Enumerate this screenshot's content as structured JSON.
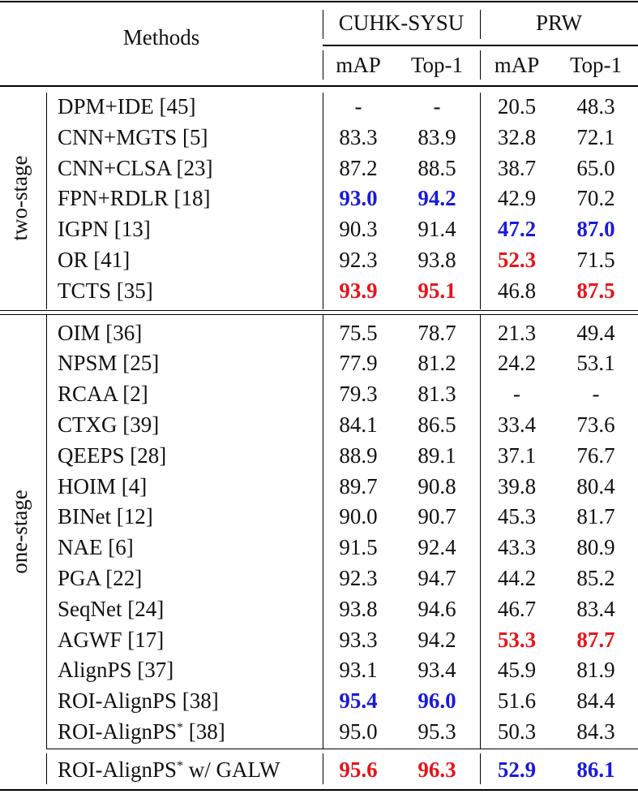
{
  "table": {
    "header": {
      "methods": "Methods",
      "datasets": [
        {
          "name": "CUHK-SYSU",
          "metrics": [
            "mAP",
            "Top-1"
          ]
        },
        {
          "name": "PRW",
          "metrics": [
            "mAP",
            "Top-1"
          ]
        }
      ]
    },
    "colors": {
      "best": "#e8141a",
      "second": "#1a1adc",
      "normal": "#111111"
    },
    "groups": [
      {
        "label": "two-stage",
        "rows": [
          {
            "method": "DPM+IDE [45]",
            "values": [
              "-",
              "-",
              "20.5",
              "48.3"
            ],
            "styles": [
              "n",
              "n",
              "n",
              "n"
            ]
          },
          {
            "method": "CNN+MGTS [5]",
            "values": [
              "83.3",
              "83.9",
              "32.8",
              "72.1"
            ],
            "styles": [
              "n",
              "n",
              "n",
              "n"
            ]
          },
          {
            "method": "CNN+CLSA [23]",
            "values": [
              "87.2",
              "88.5",
              "38.7",
              "65.0"
            ],
            "styles": [
              "n",
              "n",
              "n",
              "n"
            ]
          },
          {
            "method": "FPN+RDLR [18]",
            "values": [
              "93.0",
              "94.2",
              "42.9",
              "70.2"
            ],
            "styles": [
              "second",
              "second",
              "n",
              "n"
            ]
          },
          {
            "method": "IGPN [13]",
            "values": [
              "90.3",
              "91.4",
              "47.2",
              "87.0"
            ],
            "styles": [
              "n",
              "n",
              "second",
              "second"
            ]
          },
          {
            "method": "OR [41]",
            "values": [
              "92.3",
              "93.8",
              "52.3",
              "71.5"
            ],
            "styles": [
              "n",
              "n",
              "best",
              "n"
            ]
          },
          {
            "method": "TCTS [35]",
            "values": [
              "93.9",
              "95.1",
              "46.8",
              "87.5"
            ],
            "styles": [
              "best",
              "best",
              "n",
              "best"
            ]
          }
        ]
      },
      {
        "label": "one-stage",
        "rows": [
          {
            "method": "OIM [36]",
            "values": [
              "75.5",
              "78.7",
              "21.3",
              "49.4"
            ],
            "styles": [
              "n",
              "n",
              "n",
              "n"
            ]
          },
          {
            "method": "NPSM [25]",
            "values": [
              "77.9",
              "81.2",
              "24.2",
              "53.1"
            ],
            "styles": [
              "n",
              "n",
              "n",
              "n"
            ]
          },
          {
            "method": "RCAA [2]",
            "values": [
              "79.3",
              "81.3",
              "-",
              "-"
            ],
            "styles": [
              "n",
              "n",
              "n",
              "n"
            ]
          },
          {
            "method": "CTXG [39]",
            "values": [
              "84.1",
              "86.5",
              "33.4",
              "73.6"
            ],
            "styles": [
              "n",
              "n",
              "n",
              "n"
            ]
          },
          {
            "method": "QEEPS [28]",
            "values": [
              "88.9",
              "89.1",
              "37.1",
              "76.7"
            ],
            "styles": [
              "n",
              "n",
              "n",
              "n"
            ]
          },
          {
            "method": "HOIM [4]",
            "values": [
              "89.7",
              "90.8",
              "39.8",
              "80.4"
            ],
            "styles": [
              "n",
              "n",
              "n",
              "n"
            ]
          },
          {
            "method": "BINet [12]",
            "values": [
              "90.0",
              "90.7",
              "45.3",
              "81.7"
            ],
            "styles": [
              "n",
              "n",
              "n",
              "n"
            ]
          },
          {
            "method": "NAE [6]",
            "values": [
              "91.5",
              "92.4",
              "43.3",
              "80.9"
            ],
            "styles": [
              "n",
              "n",
              "n",
              "n"
            ]
          },
          {
            "method": "PGA [22]",
            "values": [
              "92.3",
              "94.7",
              "44.2",
              "85.2"
            ],
            "styles": [
              "n",
              "n",
              "n",
              "n"
            ]
          },
          {
            "method": "SeqNet [24]",
            "values": [
              "93.8",
              "94.6",
              "46.7",
              "83.4"
            ],
            "styles": [
              "n",
              "n",
              "n",
              "n"
            ]
          },
          {
            "method": "AGWF [17]",
            "values": [
              "93.3",
              "94.2",
              "53.3",
              "87.7"
            ],
            "styles": [
              "n",
              "n",
              "best",
              "best"
            ]
          },
          {
            "method": "AlignPS [37]",
            "values": [
              "93.1",
              "93.4",
              "45.9",
              "81.9"
            ],
            "styles": [
              "n",
              "n",
              "n",
              "n"
            ]
          },
          {
            "method": "ROI-AlignPS [38]",
            "values": [
              "95.4",
              "96.0",
              "51.6",
              "84.4"
            ],
            "styles": [
              "second",
              "second",
              "n",
              "n"
            ]
          },
          {
            "method_base": "ROI-AlignPS",
            "method_sup": "*",
            "method_tail": " [38]",
            "values": [
              "95.0",
              "95.3",
              "50.3",
              "84.3"
            ],
            "styles": [
              "n",
              "n",
              "n",
              "n"
            ]
          }
        ]
      }
    ],
    "final_row": {
      "method_base": "ROI-AlignPS",
      "method_sup": "*",
      "method_tail": " w/ GALW",
      "values": [
        "95.6",
        "96.3",
        "52.9",
        "86.1"
      ],
      "styles": [
        "best",
        "best",
        "second",
        "second"
      ]
    }
  }
}
